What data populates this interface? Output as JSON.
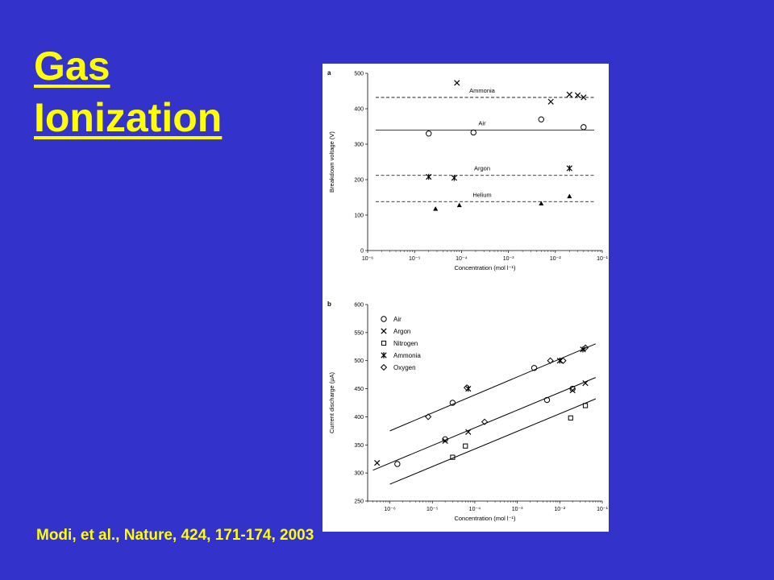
{
  "slide": {
    "title_line1": "Gas",
    "title_line2": "Ionization",
    "citation": "Modi, et al., Nature, 424, 171-174, 2003",
    "background": "#3333cc",
    "text_color": "#ffff00"
  },
  "chart_data": [
    {
      "panel_label": "a",
      "type": "scatter",
      "xscale": "log",
      "xlim": [
        1e-06,
        0.1
      ],
      "ylim": [
        0,
        500
      ],
      "xlabel": "Concentration (mol l⁻¹)",
      "ylabel": "Breakdown voltage (V)",
      "xticks": [
        "10⁻⁶",
        "10⁻⁵",
        "10⁻⁴",
        "10⁻³",
        "10⁻²",
        "10⁻¹"
      ],
      "yticks": [
        0,
        100,
        200,
        300,
        400,
        500
      ],
      "series": [
        {
          "name": "Ammonia",
          "marker": "x",
          "line_style": "dashed",
          "line_y": 432,
          "x": [
            8e-05,
            0.008,
            0.02,
            0.03,
            0.04
          ],
          "y": [
            473,
            420,
            440,
            438,
            432
          ]
        },
        {
          "name": "Air",
          "marker": "o",
          "line_style": "solid",
          "line_y": 340,
          "x": [
            2e-05,
            0.00018,
            0.005,
            0.04
          ],
          "y": [
            330,
            333,
            370,
            348
          ]
        },
        {
          "name": "Argon",
          "marker": "*",
          "line_style": "dashed",
          "line_y": 212,
          "x": [
            2e-05,
            7e-05,
            0.02
          ],
          "y": [
            208,
            205,
            232
          ]
        },
        {
          "name": "Helium",
          "marker": "triangle",
          "line_style": "dashed",
          "line_y": 138,
          "x": [
            2.8e-05,
            9e-05,
            0.005,
            0.02
          ],
          "y": [
            118,
            128,
            133,
            153
          ]
        }
      ]
    },
    {
      "panel_label": "b",
      "type": "scatter",
      "xscale": "log",
      "xlim": [
        3e-07,
        0.1
      ],
      "ylim": [
        250,
        600
      ],
      "xlabel": "Concentration (mol l⁻¹)",
      "ylabel": "Current discharge (μA)",
      "xticks": [
        "10⁻⁶",
        "10⁻⁵",
        "10⁻⁴",
        "10⁻³",
        "10⁻²",
        "10⁻¹"
      ],
      "yticks": [
        250,
        300,
        350,
        400,
        450,
        500,
        550,
        600
      ],
      "legend": [
        "Air",
        "Argon",
        "Nitrogen",
        "Ammonia",
        "Oxygen"
      ],
      "legend_position": "top-left",
      "fit_lines": [
        {
          "x": [
            1e-06,
            0.07
          ],
          "y": [
            375,
            530
          ]
        },
        {
          "x": [
            4e-07,
            0.07
          ],
          "y": [
            305,
            470
          ]
        },
        {
          "x": [
            1e-06,
            0.07
          ],
          "y": [
            280,
            432
          ]
        }
      ],
      "series": [
        {
          "name": "Air",
          "marker": "o",
          "x": [
            1.5e-06,
            2e-05,
            3e-05,
            0.0025,
            0.005,
            0.02
          ],
          "y": [
            316,
            360,
            425,
            487,
            430,
            450
          ]
        },
        {
          "name": "Argon",
          "marker": "x",
          "x": [
            5e-07,
            2e-05,
            7e-05,
            0.02,
            0.04
          ],
          "y": [
            318,
            357,
            373,
            447,
            460
          ]
        },
        {
          "name": "Nitrogen",
          "marker": "square",
          "x": [
            3e-05,
            6e-05,
            0.018,
            0.04
          ],
          "y": [
            328,
            348,
            398,
            420
          ]
        },
        {
          "name": "Ammonia",
          "marker": "*",
          "x": [
            7e-05,
            0.01,
            0.035
          ],
          "y": [
            450,
            500,
            520
          ]
        },
        {
          "name": "Oxygen",
          "marker": "diamond",
          "x": [
            8e-06,
            0.00017,
            6.5e-05,
            0.006,
            0.012,
            0.04
          ],
          "y": [
            400,
            391,
            452,
            500,
            500,
            523
          ]
        }
      ]
    }
  ]
}
